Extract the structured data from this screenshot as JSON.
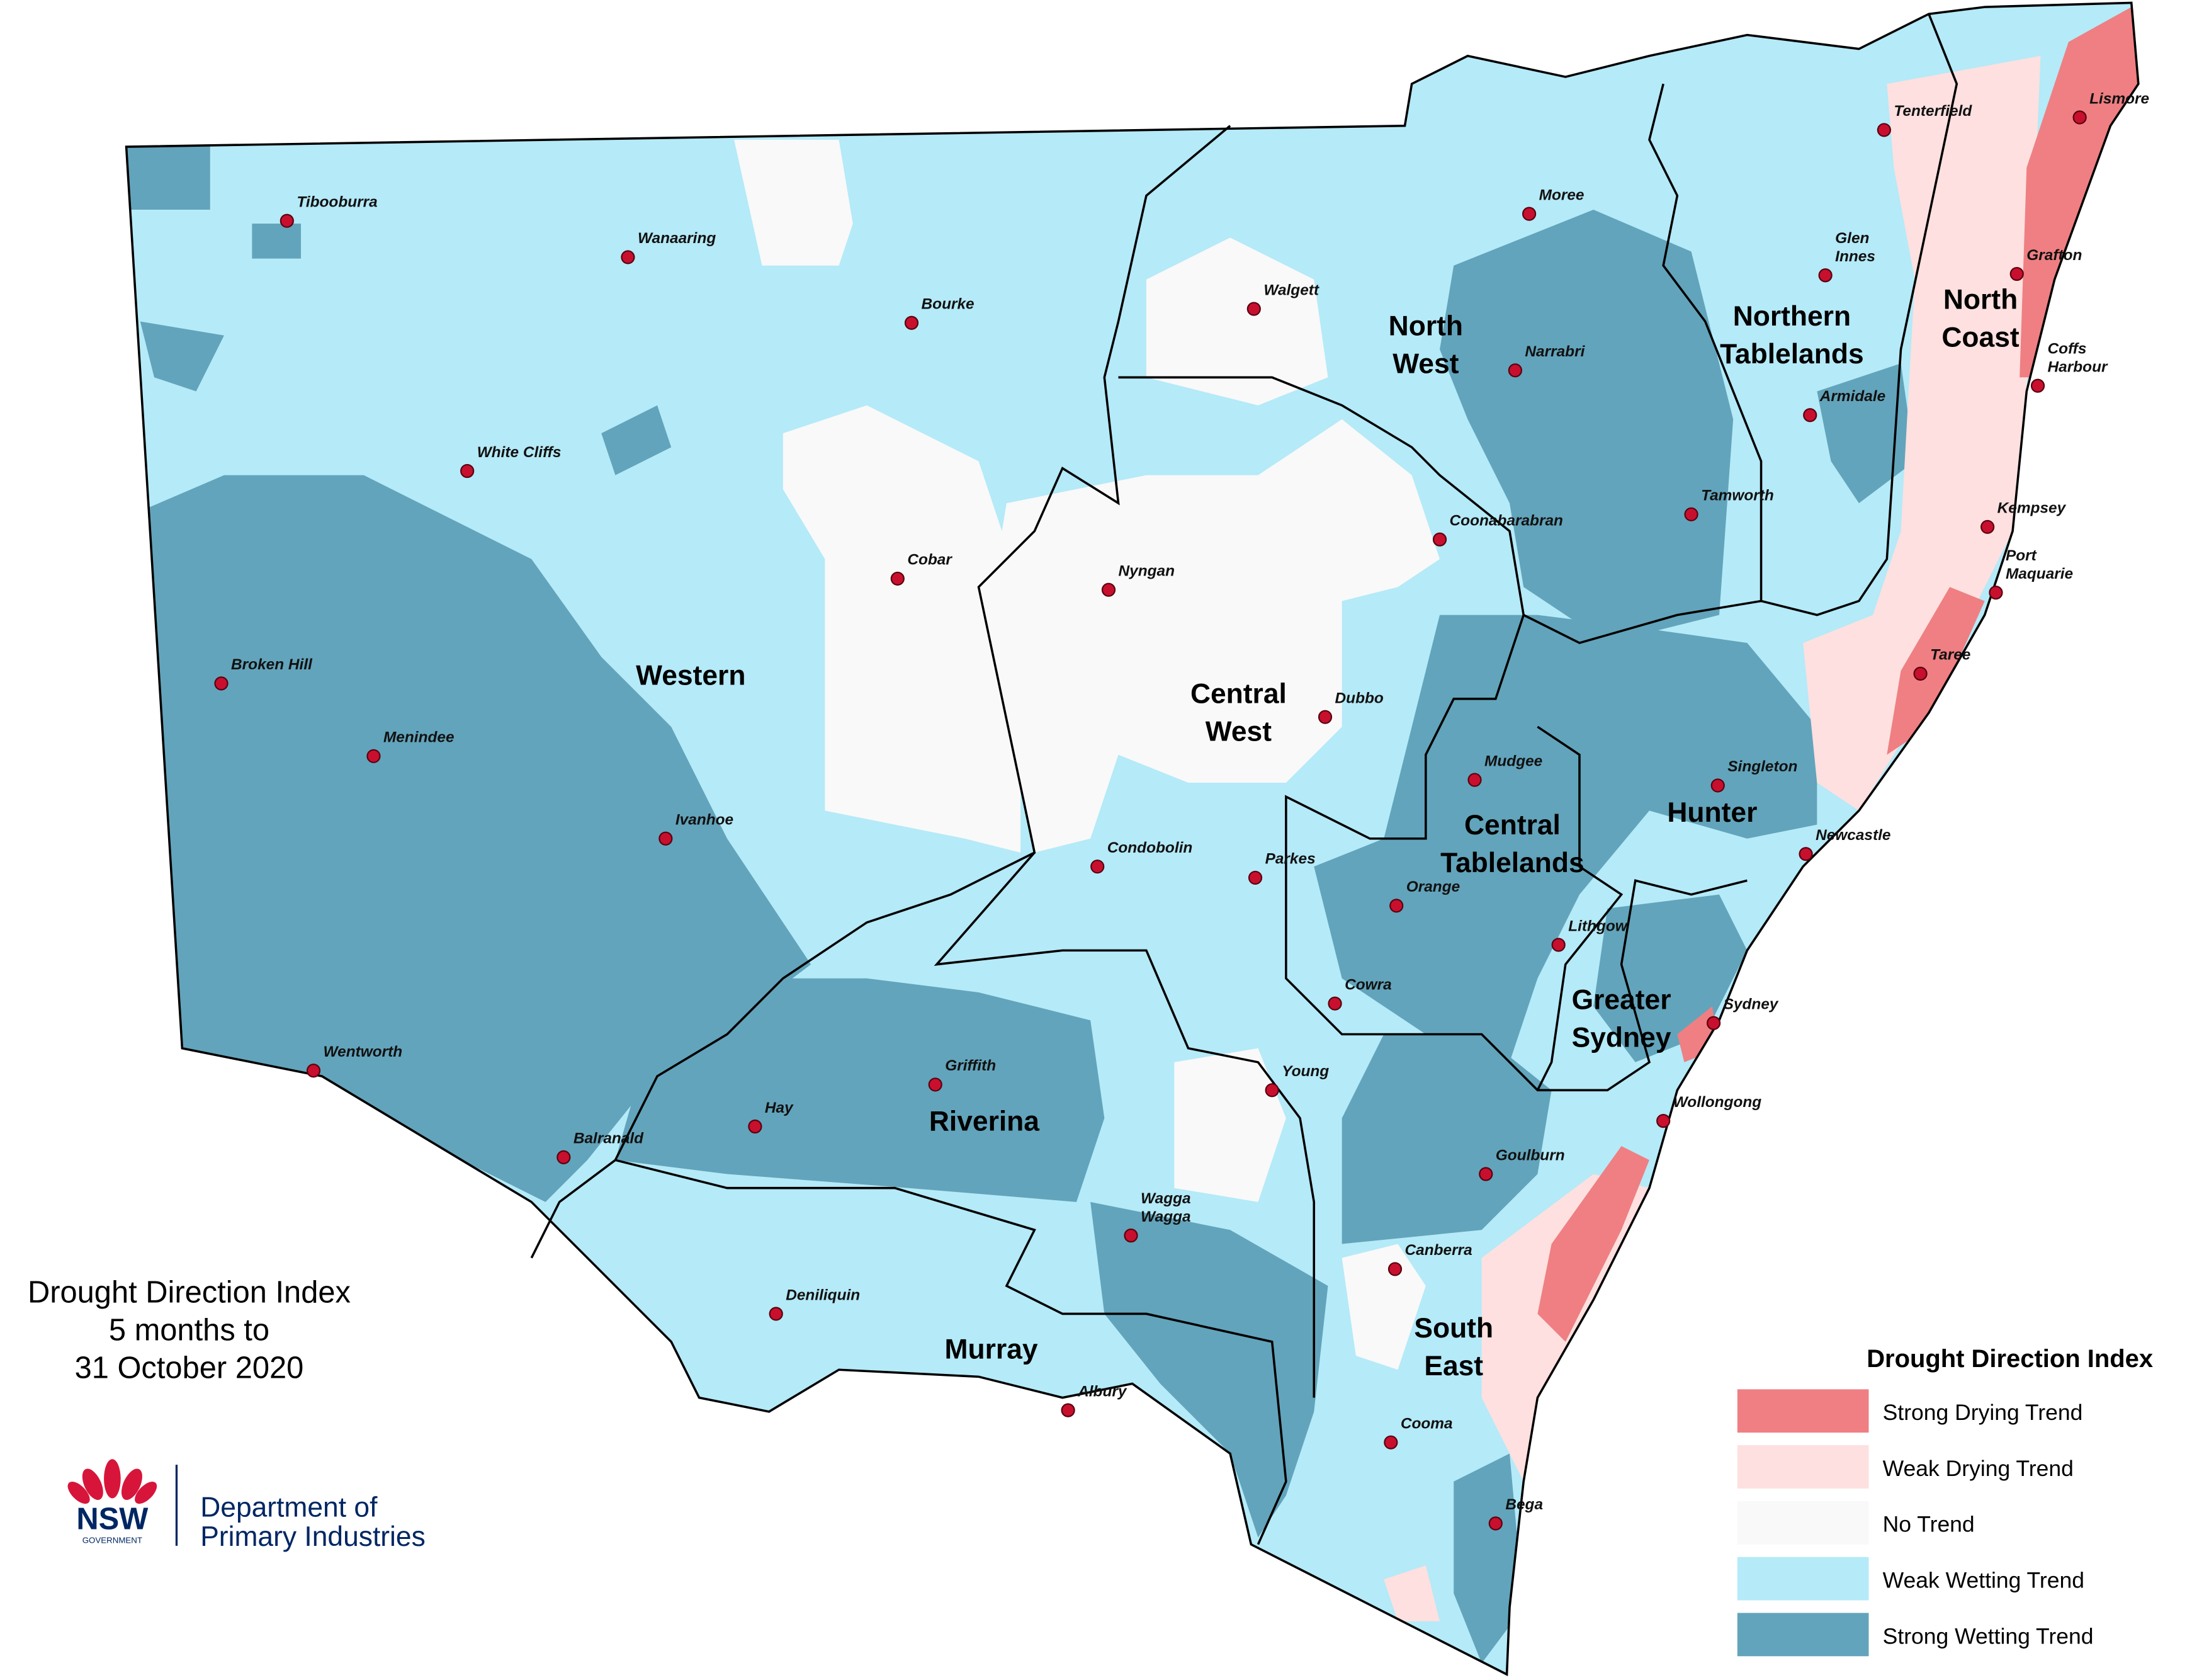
{
  "title": [
    "Drought Direction Index",
    "5 months to",
    "31 October 2020"
  ],
  "legend": {
    "title": "Drought Direction Index",
    "items": [
      {
        "label": "Strong Drying Trend",
        "color": "#ef7f82"
      },
      {
        "label": "Weak Drying Trend",
        "color": "#fde0df"
      },
      {
        "label": "No Trend",
        "color": "#f9f9f9"
      },
      {
        "label": "Weak Wetting Trend",
        "color": "#b5eaf8"
      },
      {
        "label": "Strong Wetting Trend",
        "color": "#62a4bb"
      }
    ]
  },
  "regions": [
    [
      "North",
      "West"
    ],
    [
      "Northern",
      "Tablelands"
    ],
    [
      "North",
      "Coast"
    ],
    [
      "Western"
    ],
    [
      "Central",
      "West"
    ],
    [
      "Central",
      "Tablelands"
    ],
    [
      "Hunter"
    ],
    [
      "Greater",
      "Sydney"
    ],
    [
      "Riverina"
    ],
    [
      "Murray"
    ],
    [
      "South",
      "East"
    ]
  ],
  "towns": [
    [
      "Tibooburra"
    ],
    [
      "Wanaaring"
    ],
    [
      "Bourke"
    ],
    [
      "White Cliffs"
    ],
    [
      "Cobar"
    ],
    [
      "Broken Hill"
    ],
    [
      "Menindee"
    ],
    [
      "Ivanhoe"
    ],
    [
      "Wentworth"
    ],
    [
      "Balranald"
    ],
    [
      "Hay"
    ],
    [
      "Griffith"
    ],
    [
      "Deniliquin"
    ],
    [
      "Albury"
    ],
    [
      "Wagga",
      "Wagga"
    ],
    [
      "Young"
    ],
    [
      "Cowra"
    ],
    [
      "Orange"
    ],
    [
      "Parkes"
    ],
    [
      "Condobolin"
    ],
    [
      "Nyngan"
    ],
    [
      "Dubbo"
    ],
    [
      "Walgett"
    ],
    [
      "Moree"
    ],
    [
      "Narrabri"
    ],
    [
      "Coonabarabran"
    ],
    [
      "Tamworth"
    ],
    [
      "Mudgee"
    ],
    [
      "Lithgow"
    ],
    [
      "Sydney"
    ],
    [
      "Wollongong"
    ],
    [
      "Goulburn"
    ],
    [
      "Canberra"
    ],
    [
      "Cooma"
    ],
    [
      "Bega"
    ],
    [
      "Newcastle"
    ],
    [
      "Singleton"
    ],
    [
      "Armidale"
    ],
    [
      "Glen",
      "Innes"
    ],
    [
      "Tenterfield"
    ],
    [
      "Lismore"
    ],
    [
      "Grafton"
    ],
    [
      "Coffs",
      "Harbour"
    ],
    [
      "Kempsey"
    ],
    [
      "Port",
      "Maquarie"
    ],
    [
      "Taree"
    ]
  ],
  "logo": {
    "nsw": "NSW",
    "government": "GOVERNMENT",
    "department": [
      "Department of",
      "Primary Industries"
    ]
  }
}
